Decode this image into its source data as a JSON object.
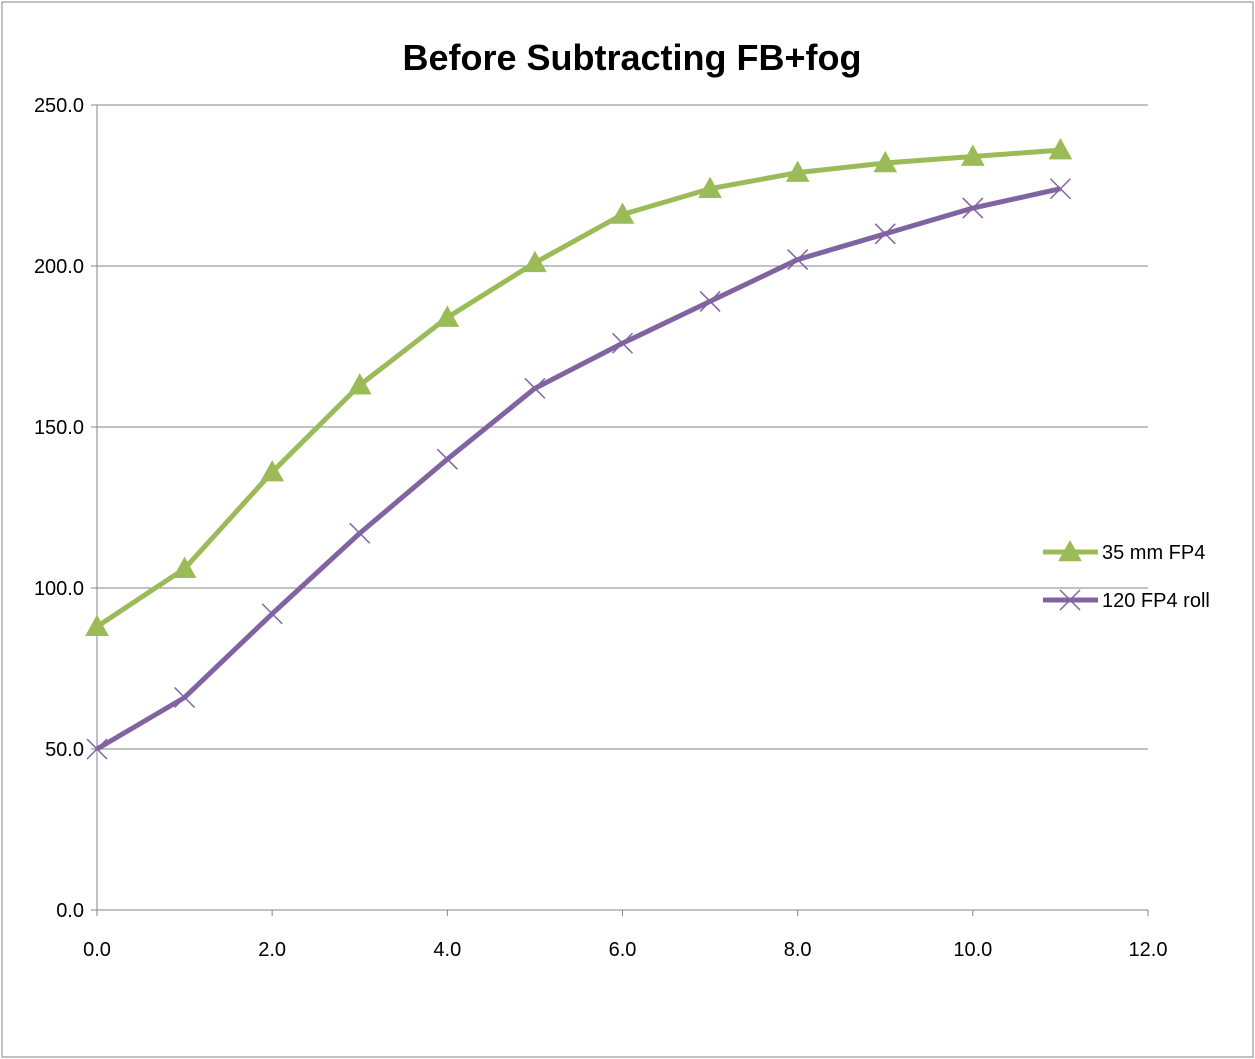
{
  "chart_data": {
    "type": "line",
    "title": "Before Subtracting FB+fog",
    "xlabel": "",
    "ylabel": "",
    "xlim": [
      0,
      12
    ],
    "ylim": [
      0,
      250
    ],
    "x_ticks": [
      "0.0",
      "2.0",
      "4.0",
      "6.0",
      "8.0",
      "10.0",
      "12.0"
    ],
    "y_ticks": [
      "0.0",
      "50.0",
      "100.0",
      "150.0",
      "200.0",
      "250.0"
    ],
    "grid": "horizontal",
    "legend_position": "right",
    "series": [
      {
        "name": "35 mm FP4",
        "color": "#9bbb59",
        "marker": "triangle",
        "x": [
          0,
          1,
          2,
          3,
          4,
          5,
          6,
          7,
          8,
          9,
          10,
          11
        ],
        "values": [
          88,
          106,
          136,
          163,
          184,
          201,
          216,
          224,
          229,
          232,
          234,
          236
        ]
      },
      {
        "name": "120 FP4 roll",
        "color": "#8064a2",
        "marker": "x",
        "x": [
          0,
          1,
          2,
          3,
          4,
          5,
          6,
          7,
          8,
          9,
          10,
          11
        ],
        "values": [
          50,
          66,
          92,
          117,
          140,
          162,
          176,
          189,
          202,
          210,
          218,
          224
        ]
      }
    ]
  }
}
